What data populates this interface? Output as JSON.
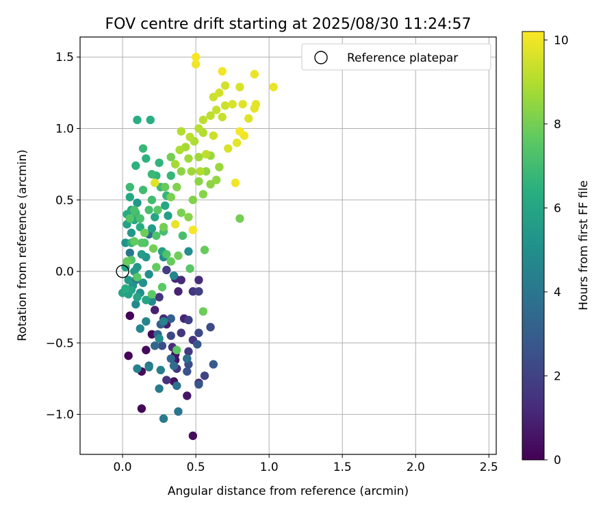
{
  "chart_data": {
    "type": "scatter",
    "title": "FOV centre drift starting at 2025/08/30 11:24:57",
    "xlabel": "Angular distance from reference (arcmin)",
    "ylabel": "Rotation from reference (arcmin)",
    "xlim": [
      -0.29,
      2.55
    ],
    "ylim": [
      -1.28,
      1.64
    ],
    "xticks": [
      0.0,
      0.5,
      1.0,
      1.5,
      2.0,
      2.5
    ],
    "xtick_labels": [
      "0.0",
      "0.5",
      "1.0",
      "1.5",
      "2.0",
      "2.5"
    ],
    "yticks": [
      -1.0,
      -0.5,
      0.0,
      0.5,
      1.0,
      1.5
    ],
    "ytick_labels": [
      "−1.0",
      "−0.5",
      "0.0",
      "0.5",
      "1.0",
      "1.5"
    ],
    "grid": true,
    "legend": {
      "location": "upper right",
      "entries": [
        {
          "label": "Reference platepar",
          "marker": "open circle",
          "x": 0.0,
          "y": 0.0
        }
      ]
    },
    "colorbar": {
      "label": "Hours from first FF file",
      "colormap": "viridis",
      "range": [
        0,
        10.2
      ],
      "ticks": [
        0,
        2,
        4,
        6,
        8,
        10
      ],
      "tick_labels": [
        "0",
        "2",
        "4",
        "6",
        "8",
        "10"
      ]
    },
    "series": [
      {
        "points": [
          [
            0.05,
            -0.31,
            0.1
          ],
          [
            0.04,
            -0.59,
            0.1
          ],
          [
            0.13,
            -0.96,
            0.2
          ],
          [
            0.13,
            -0.7,
            0.3
          ],
          [
            0.2,
            -0.44,
            0.2
          ],
          [
            0.16,
            -0.55,
            0.3
          ],
          [
            0.35,
            -0.77,
            0.4
          ],
          [
            0.48,
            -1.15,
            0.3
          ],
          [
            0.36,
            -0.58,
            0.5
          ],
          [
            0.44,
            -0.87,
            0.6
          ],
          [
            0.36,
            -0.62,
            0.6
          ],
          [
            0.3,
            -0.37,
            0.8
          ],
          [
            0.42,
            -0.33,
            1.0
          ],
          [
            0.52,
            -0.78,
            0.9
          ],
          [
            0.38,
            -0.14,
            1.0
          ],
          [
            0.36,
            -0.05,
            1.1
          ],
          [
            0.4,
            -0.06,
            1.2
          ],
          [
            0.52,
            -0.06,
            1.3
          ],
          [
            0.28,
            -0.33,
            1.2
          ],
          [
            0.34,
            -0.53,
            1.3
          ],
          [
            0.4,
            -0.43,
            1.6
          ],
          [
            0.45,
            -0.56,
            1.7
          ],
          [
            0.3,
            -0.76,
            1.5
          ],
          [
            0.48,
            -0.48,
            1.5
          ],
          [
            0.37,
            -0.68,
            1.4
          ],
          [
            0.48,
            -0.14,
            1.6
          ],
          [
            0.45,
            -0.34,
            1.9
          ],
          [
            0.52,
            -0.14,
            2.0
          ],
          [
            0.52,
            -0.43,
            2.2
          ],
          [
            0.56,
            -0.73,
            2.0
          ],
          [
            0.6,
            -0.39,
            2.3
          ],
          [
            0.33,
            -0.45,
            2.2
          ],
          [
            0.27,
            -0.52,
            2.4
          ],
          [
            0.45,
            -0.65,
            2.4
          ],
          [
            0.44,
            -0.7,
            2.6
          ],
          [
            0.52,
            -0.79,
            2.7
          ],
          [
            0.62,
            -0.65,
            2.9
          ],
          [
            0.51,
            -0.51,
            2.8
          ],
          [
            0.44,
            -0.61,
            2.9
          ],
          [
            0.33,
            -0.33,
            3.0
          ],
          [
            0.26,
            -0.37,
            3.1
          ],
          [
            0.24,
            -0.44,
            3.3
          ],
          [
            0.22,
            -0.52,
            3.4
          ],
          [
            0.18,
            -0.66,
            3.5
          ],
          [
            0.33,
            -0.61,
            3.4
          ],
          [
            0.35,
            -0.66,
            3.6
          ],
          [
            0.44,
            -0.61,
            3.7
          ],
          [
            0.37,
            -0.8,
            3.8
          ],
          [
            0.38,
            -0.98,
            4.0
          ],
          [
            0.28,
            -1.03,
            4.1
          ],
          [
            0.25,
            -0.82,
            4.2
          ],
          [
            0.26,
            -0.69,
            4.3
          ],
          [
            0.18,
            -0.67,
            4.4
          ],
          [
            0.1,
            -0.68,
            4.5
          ],
          [
            0.28,
            -0.35,
            4.5
          ],
          [
            0.16,
            -0.35,
            4.6
          ],
          [
            0.12,
            -0.4,
            4.7
          ],
          [
            0.2,
            -0.21,
            4.8
          ],
          [
            0.09,
            -0.23,
            4.8
          ],
          [
            0.25,
            -0.47,
            4.9
          ],
          [
            0.12,
            -0.15,
            5.0
          ],
          [
            0.18,
            -0.02,
            5.0
          ],
          [
            0.14,
            -0.08,
            5.1
          ],
          [
            0.07,
            -0.1,
            5.2
          ],
          [
            0.02,
            0.2,
            5.2
          ],
          [
            0.1,
            0.03,
            5.3
          ],
          [
            0.16,
            0.1,
            5.3
          ],
          [
            0.06,
            0.27,
            5.4
          ],
          [
            0.1,
            0.48,
            5.4
          ],
          [
            0.04,
            -0.06,
            5.5
          ],
          [
            0.08,
            0.0,
            5.5
          ],
          [
            0.13,
            0.12,
            5.6
          ],
          [
            0.2,
            0.3,
            5.6
          ],
          [
            0.27,
            0.14,
            5.7
          ],
          [
            0.31,
            0.39,
            5.7
          ],
          [
            0.03,
            0.33,
            5.8
          ],
          [
            0.04,
            -0.16,
            5.8
          ],
          [
            0.06,
            -0.13,
            5.9
          ],
          [
            0.1,
            -0.18,
            5.9
          ],
          [
            0.16,
            -0.2,
            6.0
          ],
          [
            0.22,
            0.38,
            6.0
          ],
          [
            0.29,
            0.46,
            6.1
          ],
          [
            0.05,
            0.52,
            6.1
          ],
          [
            0.06,
            0.43,
            6.2
          ],
          [
            0.08,
            0.36,
            6.2
          ],
          [
            0.12,
            0.31,
            6.3
          ],
          [
            0.03,
            0.4,
            6.3
          ],
          [
            0.1,
            1.06,
            6.4
          ],
          [
            0.19,
            1.06,
            6.4
          ],
          [
            0.09,
            0.74,
            6.5
          ],
          [
            0.16,
            0.79,
            6.5
          ],
          [
            0.23,
            0.67,
            6.6
          ],
          [
            0.25,
            0.76,
            6.6
          ],
          [
            0.3,
            0.53,
            6.7
          ],
          [
            0.33,
            0.67,
            6.7
          ],
          [
            0.14,
            0.86,
            6.8
          ],
          [
            0.2,
            0.68,
            6.8
          ],
          [
            0.26,
            0.59,
            6.9
          ],
          [
            0.05,
            0.59,
            6.9
          ],
          [
            0.14,
            0.57,
            7.0
          ],
          [
            0.2,
            0.5,
            7.0
          ],
          [
            0.28,
            0.28,
            7.1
          ],
          [
            0.18,
            0.43,
            7.1
          ],
          [
            0.08,
            0.43,
            7.2
          ],
          [
            0.12,
            0.37,
            7.2
          ],
          [
            0.23,
            0.25,
            7.3
          ],
          [
            0.3,
            0.12,
            7.3
          ],
          [
            0.05,
            0.37,
            7.4
          ],
          [
            0.06,
            0.08,
            7.4
          ],
          [
            0.1,
            -0.04,
            7.5
          ],
          [
            0.13,
            0.2,
            7.5
          ],
          [
            0.2,
            -0.16,
            7.6
          ],
          [
            0.27,
            -0.11,
            7.6
          ],
          [
            0.23,
            0.03,
            7.7
          ],
          [
            0.08,
            0.21,
            7.7
          ],
          [
            0.03,
            0.07,
            7.8
          ],
          [
            0.33,
            0.07,
            7.8
          ],
          [
            0.38,
            0.11,
            7.9
          ],
          [
            0.15,
            0.27,
            7.9
          ],
          [
            0.21,
            0.16,
            8.0
          ],
          [
            0.28,
            0.31,
            8.0
          ],
          [
            0.33,
            0.52,
            8.1
          ],
          [
            0.4,
            0.41,
            8.1
          ],
          [
            0.48,
            0.5,
            8.2
          ],
          [
            0.37,
            0.59,
            8.2
          ],
          [
            0.45,
            0.38,
            8.3
          ],
          [
            0.55,
            0.54,
            8.3
          ],
          [
            0.52,
            0.63,
            8.4
          ],
          [
            0.6,
            0.61,
            8.4
          ],
          [
            0.57,
            0.7,
            8.5
          ],
          [
            0.64,
            0.64,
            8.5
          ],
          [
            0.66,
            0.73,
            8.6
          ],
          [
            0.6,
            0.81,
            8.6
          ],
          [
            0.52,
            0.8,
            8.7
          ],
          [
            0.45,
            0.79,
            8.7
          ],
          [
            0.43,
            0.87,
            8.8
          ],
          [
            0.36,
            0.75,
            8.8
          ],
          [
            0.39,
            0.85,
            8.9
          ],
          [
            0.49,
            0.91,
            8.9
          ],
          [
            0.55,
            0.97,
            9.0
          ],
          [
            0.4,
            0.98,
            9.0
          ],
          [
            0.46,
            0.94,
            9.1
          ],
          [
            0.52,
            1.0,
            9.1
          ],
          [
            0.55,
            1.06,
            9.2
          ],
          [
            0.6,
            1.09,
            9.2
          ],
          [
            0.64,
            1.13,
            9.3
          ],
          [
            0.68,
            1.08,
            9.3
          ],
          [
            0.7,
            1.16,
            9.4
          ],
          [
            0.62,
            1.22,
            9.4
          ],
          [
            0.66,
            1.25,
            9.5
          ],
          [
            0.7,
            1.3,
            9.5
          ],
          [
            0.8,
            1.29,
            9.6
          ],
          [
            0.75,
            1.17,
            9.6
          ],
          [
            0.82,
            1.17,
            9.7
          ],
          [
            0.86,
            1.07,
            9.7
          ],
          [
            0.9,
            1.14,
            9.8
          ],
          [
            0.91,
            1.17,
            9.8
          ],
          [
            0.9,
            1.38,
            9.9
          ],
          [
            1.03,
            1.29,
            9.9
          ],
          [
            0.68,
            1.4,
            10.0
          ],
          [
            0.5,
            1.45,
            10.0
          ],
          [
            0.5,
            1.5,
            10.1
          ],
          [
            0.8,
            0.98,
            10.1
          ],
          [
            0.83,
            0.95,
            10.0
          ],
          [
            0.77,
            0.62,
            10.0
          ],
          [
            0.48,
            0.29,
            10.1
          ],
          [
            0.36,
            0.33,
            9.9
          ],
          [
            0.22,
            0.62,
            9.7
          ],
          [
            0.8,
            0.37,
            8.0
          ],
          [
            0.55,
            -0.28,
            7.9
          ],
          [
            0.37,
            -0.55,
            7.6
          ],
          [
            0.46,
            0.02,
            7.5
          ],
          [
            0.56,
            0.15,
            7.8
          ],
          [
            0.41,
            0.25,
            7.1
          ],
          [
            0.15,
            0.2,
            7.3
          ],
          [
            0.0,
            -0.15,
            6.0
          ],
          [
            0.02,
            -0.12,
            6.3
          ],
          [
            0.45,
            0.14,
            5.0
          ],
          [
            0.28,
            0.1,
            4.9
          ],
          [
            0.35,
            -0.03,
            4.6
          ],
          [
            0.09,
            -0.06,
            4.2
          ],
          [
            0.05,
            0.13,
            4.0
          ],
          [
            0.18,
            0.26,
            3.5
          ],
          [
            0.02,
            0.03,
            5.9
          ],
          [
            0.06,
            0.2,
            6.5
          ],
          [
            0.09,
            0.41,
            7.0
          ],
          [
            0.24,
            0.43,
            7.5
          ],
          [
            0.29,
            0.59,
            7.8
          ],
          [
            0.33,
            0.8,
            8.0
          ],
          [
            0.4,
            0.7,
            8.4
          ],
          [
            0.47,
            0.7,
            8.7
          ],
          [
            0.53,
            0.7,
            9.0
          ],
          [
            0.57,
            0.82,
            9.2
          ],
          [
            0.62,
            0.95,
            9.4
          ],
          [
            0.72,
            0.86,
            9.6
          ],
          [
            0.78,
            0.9,
            9.8
          ],
          [
            0.3,
            0.01,
            1.8
          ],
          [
            0.25,
            -0.18,
            1.5
          ],
          [
            0.22,
            -0.27,
            0.9
          ]
        ]
      }
    ]
  }
}
